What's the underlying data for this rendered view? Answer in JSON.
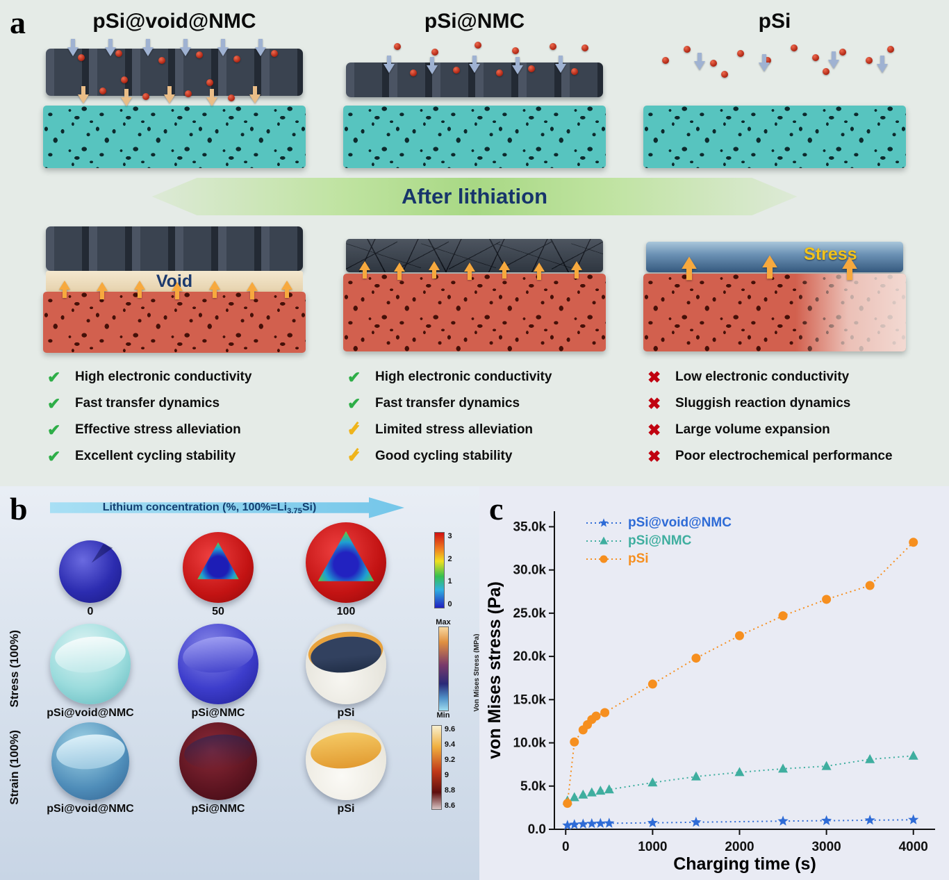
{
  "panel_a": {
    "label": "a",
    "after_banner": "After lithiation",
    "columns": [
      {
        "title": "pSi@void@NMC",
        "after_overlay": "Void",
        "checklist": [
          {
            "icon": "check",
            "color": "green",
            "text": "High electronic conductivity"
          },
          {
            "icon": "check",
            "color": "green",
            "text": "Fast transfer dynamics"
          },
          {
            "icon": "check",
            "color": "green",
            "text": "Effective stress alleviation"
          },
          {
            "icon": "check",
            "color": "green",
            "text": "Excellent cycling stability"
          }
        ]
      },
      {
        "title": "pSi@NMC",
        "after_overlay": "",
        "checklist": [
          {
            "icon": "check",
            "color": "green",
            "text": "High electronic conductivity"
          },
          {
            "icon": "check",
            "color": "green",
            "text": "Fast transfer dynamics"
          },
          {
            "icon": "check-partial",
            "color": "yellow",
            "text": "Limited stress alleviation"
          },
          {
            "icon": "check-partial",
            "color": "yellow",
            "text": "Good cycling stability"
          }
        ]
      },
      {
        "title": "pSi",
        "after_overlay": "Stress",
        "checklist": [
          {
            "icon": "cross",
            "color": "red",
            "text": "Low electronic conductivity"
          },
          {
            "icon": "cross",
            "color": "red",
            "text": "Sluggish reaction dynamics"
          },
          {
            "icon": "cross",
            "color": "red",
            "text": "Large volume expansion"
          },
          {
            "icon": "cross",
            "color": "red",
            "text": "Poor electrochemical performance"
          }
        ]
      }
    ]
  },
  "panel_b": {
    "label": "b",
    "arrow_label": {
      "prefix": "Lithium concentration (%, 100%=Li",
      "sub": "3.75",
      "suffix": "Si)"
    },
    "row1": {
      "labels": [
        "0",
        "50",
        "100"
      ],
      "colorbar_ticks": [
        "3",
        "2",
        "1",
        "0"
      ]
    },
    "row2": {
      "row_label": "Stress (100%)",
      "sphere_labels": [
        "pSi@void@NMC",
        "pSi@NMC",
        "pSi"
      ],
      "colorbar": {
        "top": "Max",
        "bottom": "Min",
        "label": "Von Mises Stress (MPa)"
      }
    },
    "row3": {
      "row_label": "Strain (100%)",
      "sphere_labels": [
        "pSi@void@NMC",
        "pSi@NMC",
        "pSi"
      ],
      "colorbar_ticks": [
        "9.6",
        "9.4",
        "9.2",
        "9",
        "8.8",
        "8.6"
      ]
    }
  },
  "panel_c": {
    "label": "c"
  },
  "chart_data": {
    "type": "scatter",
    "title": "",
    "xlabel": "Charging time (s)",
    "ylabel": "von Mises stress (Pa)",
    "xlim": [
      -130,
      4250
    ],
    "ylim": [
      0,
      36800
    ],
    "grid": false,
    "legend_position": "top-left",
    "line_style": "dotted",
    "x_ticks": {
      "values": [
        0,
        1000,
        2000,
        3000,
        4000
      ],
      "labels": [
        "0",
        "1000",
        "2000",
        "3000",
        "4000"
      ]
    },
    "y_ticks": {
      "values": [
        0,
        5000,
        10000,
        15000,
        20000,
        25000,
        30000,
        35000
      ],
      "labels": [
        "0.0",
        "5.0k",
        "10.0k",
        "15.0k",
        "20.0k",
        "25.0k",
        "30.0k",
        "35.0k"
      ]
    },
    "series": [
      {
        "name": "pSi@void@NMC",
        "color": "#2e6bd6",
        "marker": "star",
        "x": [
          20,
          100,
          200,
          300,
          400,
          500,
          1000,
          1500,
          2500,
          3000,
          3500,
          4000
        ],
        "y": [
          450,
          550,
          600,
          650,
          680,
          700,
          750,
          820,
          950,
          1000,
          1050,
          1100
        ]
      },
      {
        "name": "pSi@NMC",
        "color": "#3fae9f",
        "marker": "triangle",
        "x": [
          20,
          100,
          200,
          300,
          400,
          500,
          1000,
          1500,
          2000,
          2500,
          3000,
          3500,
          4000
        ],
        "y": [
          3300,
          3700,
          4000,
          4250,
          4450,
          4600,
          5400,
          6100,
          6600,
          7000,
          7300,
          8100,
          8500
        ]
      },
      {
        "name": "pSi",
        "color": "#f68f1f",
        "marker": "circle",
        "x": [
          20,
          100,
          200,
          250,
          300,
          350,
          450,
          1000,
          1500,
          2000,
          2500,
          3000,
          3500,
          4000
        ],
        "y": [
          3000,
          10100,
          11500,
          12100,
          12700,
          13100,
          13500,
          16800,
          19800,
          22400,
          24700,
          26600,
          28200,
          33200
        ]
      }
    ]
  }
}
